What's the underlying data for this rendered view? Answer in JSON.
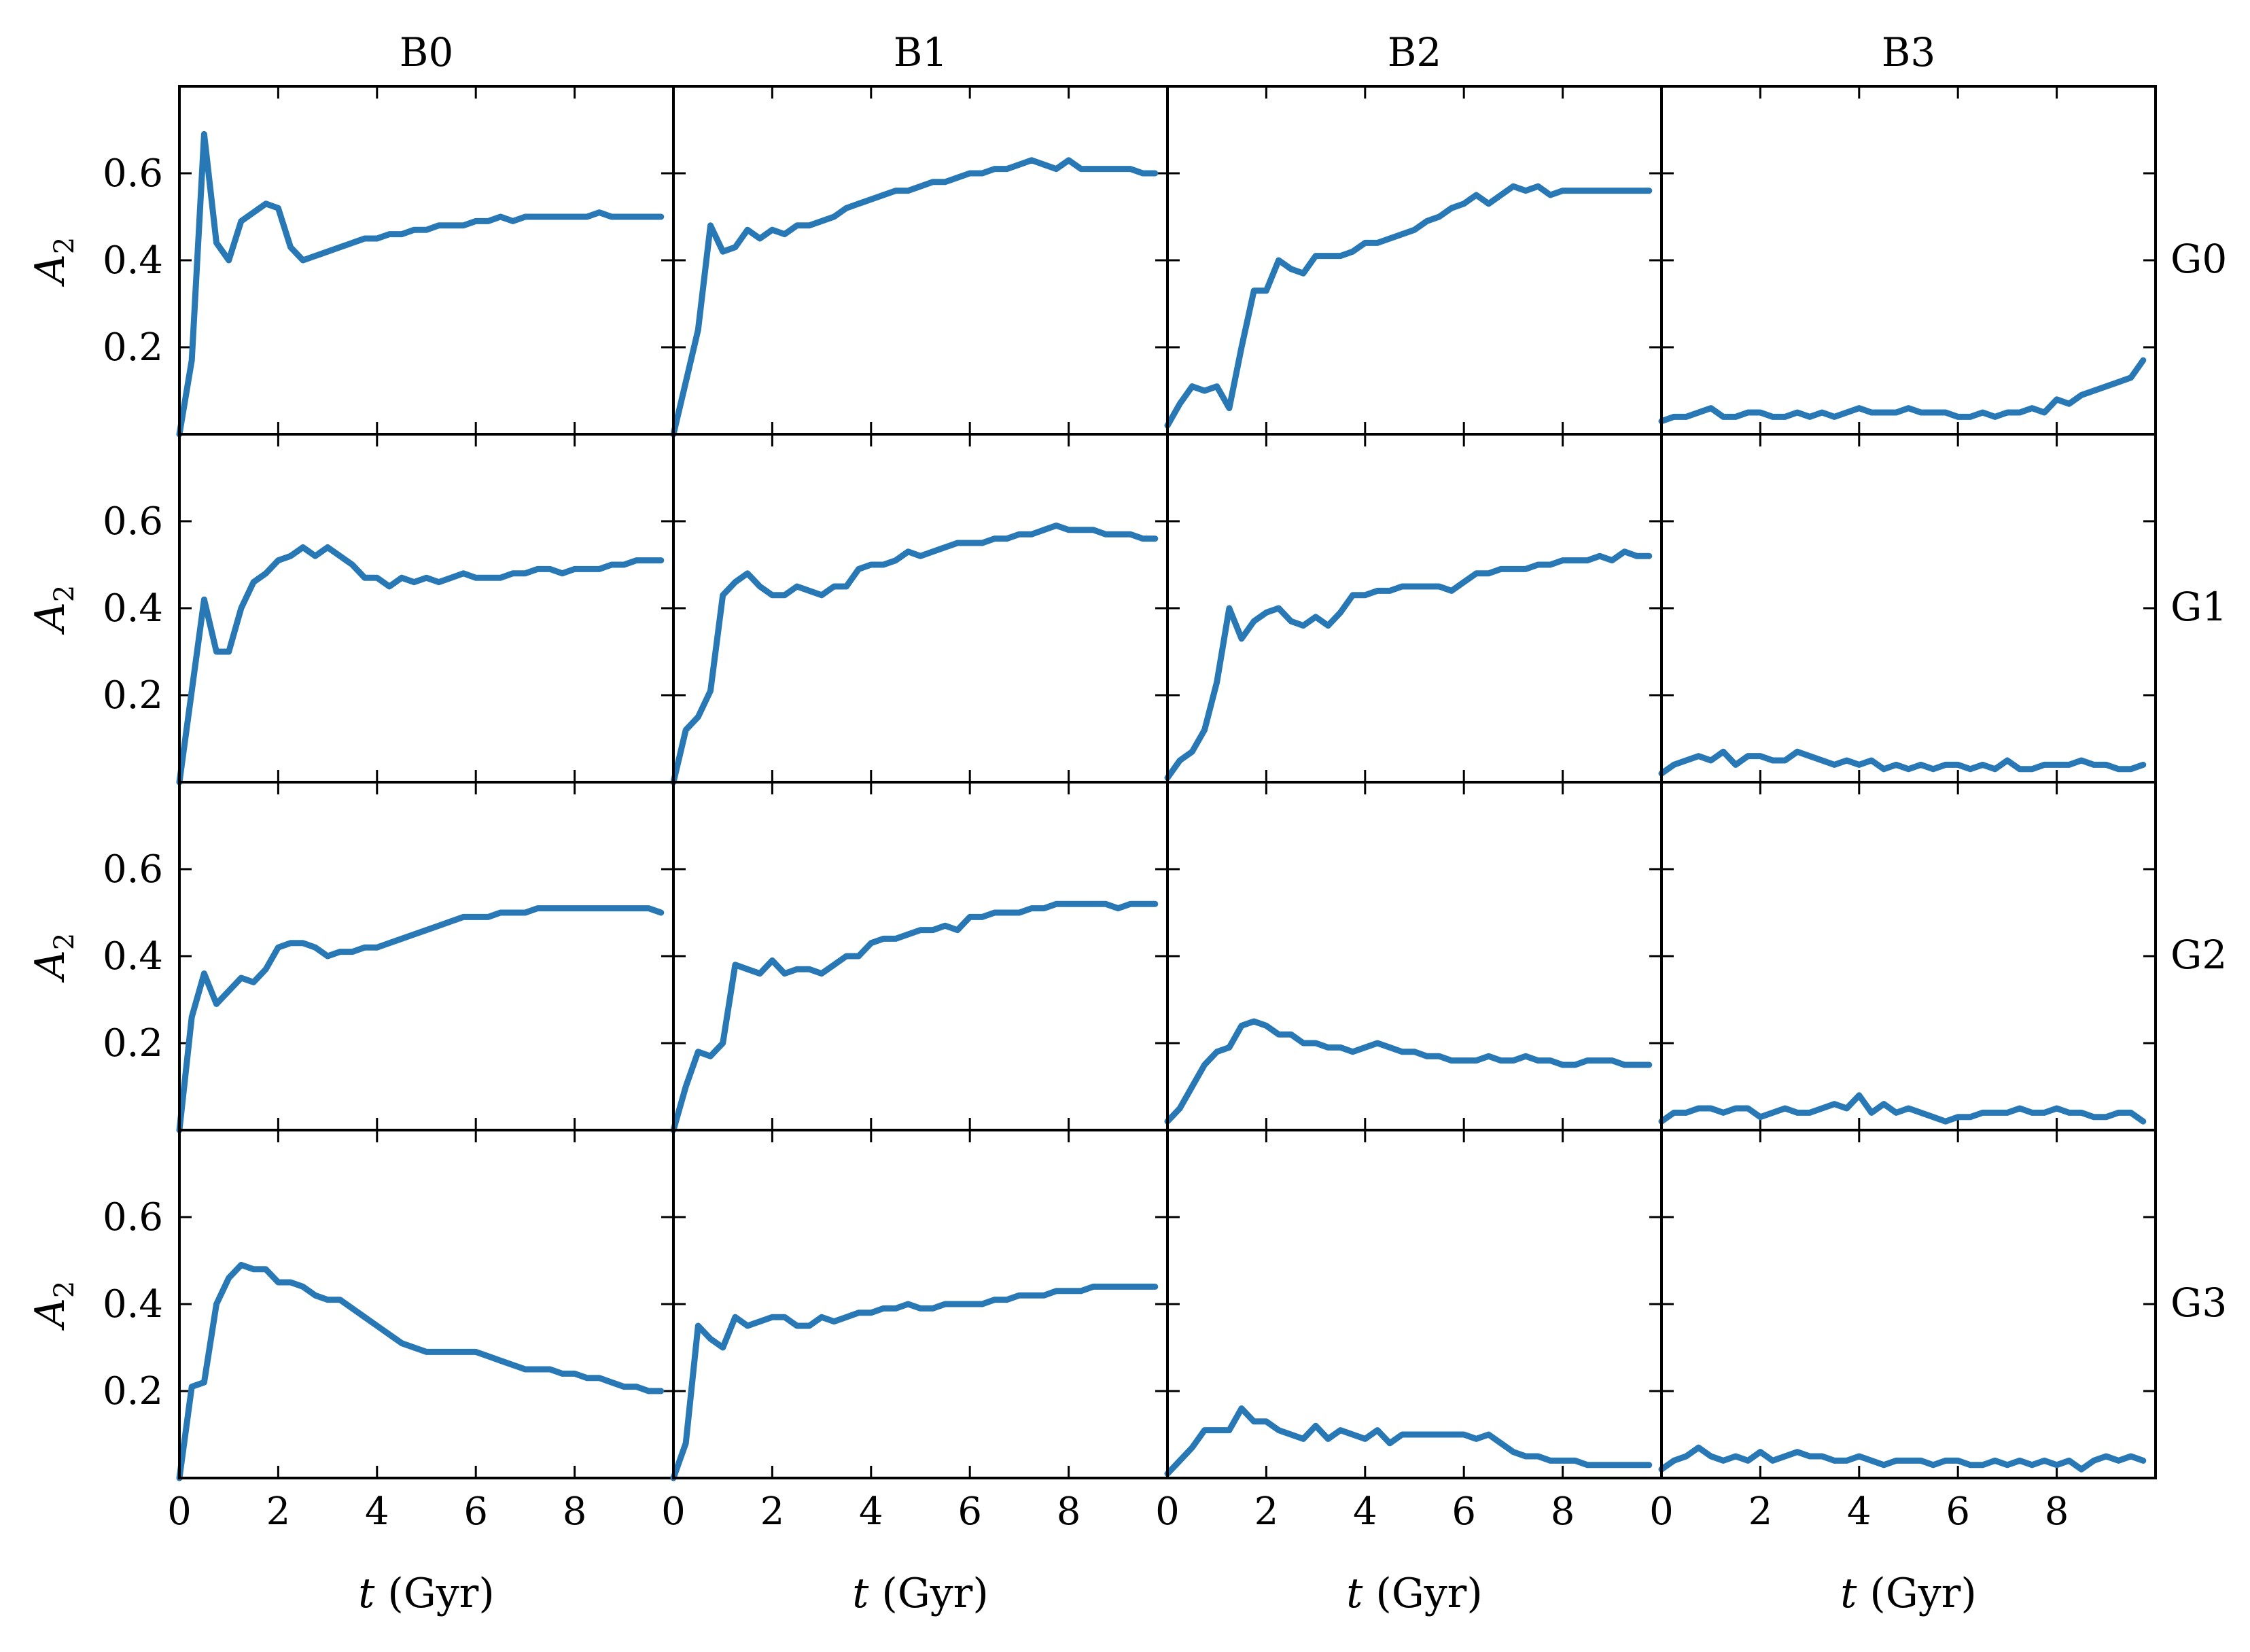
{
  "figure": {
    "columns": [
      "B0",
      "B1",
      "B2",
      "B3"
    ],
    "rows": [
      "G0",
      "G1",
      "G2",
      "G3"
    ],
    "ylabel_symbol": "A",
    "ylabel_subscript": "2",
    "xlabel_symbol": "t",
    "xlabel_unit": " (Gyr)",
    "line_color": "#2878b5",
    "xlim": [
      0,
      10
    ],
    "ylim": [
      0,
      0.8
    ],
    "xticks": [
      0,
      2,
      4,
      6,
      8
    ],
    "yticks": [
      0.2,
      0.4,
      0.6
    ]
  },
  "chart_data": [
    {
      "type": "line",
      "row": "G0",
      "column": "B0",
      "x_step": 0.25,
      "values": [
        0.0,
        0.17,
        0.69,
        0.44,
        0.4,
        0.49,
        0.51,
        0.53,
        0.52,
        0.43,
        0.4,
        0.41,
        0.42,
        0.43,
        0.44,
        0.45,
        0.45,
        0.46,
        0.46,
        0.47,
        0.47,
        0.48,
        0.48,
        0.48,
        0.49,
        0.49,
        0.5,
        0.49,
        0.5,
        0.5,
        0.5,
        0.5,
        0.5,
        0.5,
        0.51,
        0.5,
        0.5,
        0.5,
        0.5,
        0.5
      ]
    },
    {
      "type": "line",
      "row": "G0",
      "column": "B1",
      "x_step": 0.25,
      "values": [
        0.0,
        0.12,
        0.24,
        0.48,
        0.42,
        0.43,
        0.47,
        0.45,
        0.47,
        0.46,
        0.48,
        0.48,
        0.49,
        0.5,
        0.52,
        0.53,
        0.54,
        0.55,
        0.56,
        0.56,
        0.57,
        0.58,
        0.58,
        0.59,
        0.6,
        0.6,
        0.61,
        0.61,
        0.62,
        0.63,
        0.62,
        0.61,
        0.63,
        0.61,
        0.61,
        0.61,
        0.61,
        0.61,
        0.6,
        0.6
      ]
    },
    {
      "type": "line",
      "row": "G0",
      "column": "B2",
      "x_step": 0.25,
      "values": [
        0.02,
        0.07,
        0.11,
        0.1,
        0.11,
        0.06,
        0.2,
        0.33,
        0.33,
        0.4,
        0.38,
        0.37,
        0.41,
        0.41,
        0.41,
        0.42,
        0.44,
        0.44,
        0.45,
        0.46,
        0.47,
        0.49,
        0.5,
        0.52,
        0.53,
        0.55,
        0.53,
        0.55,
        0.57,
        0.56,
        0.57,
        0.55,
        0.56,
        0.56,
        0.56,
        0.56,
        0.56,
        0.56,
        0.56,
        0.56
      ]
    },
    {
      "type": "line",
      "row": "G0",
      "column": "B3",
      "x_step": 0.25,
      "values": [
        0.03,
        0.04,
        0.04,
        0.05,
        0.06,
        0.04,
        0.04,
        0.05,
        0.05,
        0.04,
        0.04,
        0.05,
        0.04,
        0.05,
        0.04,
        0.05,
        0.06,
        0.05,
        0.05,
        0.05,
        0.06,
        0.05,
        0.05,
        0.05,
        0.04,
        0.04,
        0.05,
        0.04,
        0.05,
        0.05,
        0.06,
        0.05,
        0.08,
        0.07,
        0.09,
        0.1,
        0.11,
        0.12,
        0.13,
        0.17
      ]
    },
    {
      "type": "line",
      "row": "G1",
      "column": "B0",
      "x_step": 0.25,
      "values": [
        0.0,
        0.21,
        0.42,
        0.3,
        0.3,
        0.4,
        0.46,
        0.48,
        0.51,
        0.52,
        0.54,
        0.52,
        0.54,
        0.52,
        0.5,
        0.47,
        0.47,
        0.45,
        0.47,
        0.46,
        0.47,
        0.46,
        0.47,
        0.48,
        0.47,
        0.47,
        0.47,
        0.48,
        0.48,
        0.49,
        0.49,
        0.48,
        0.49,
        0.49,
        0.49,
        0.5,
        0.5,
        0.51,
        0.51,
        0.51
      ]
    },
    {
      "type": "line",
      "row": "G1",
      "column": "B1",
      "x_step": 0.25,
      "values": [
        0.0,
        0.12,
        0.15,
        0.21,
        0.43,
        0.46,
        0.48,
        0.45,
        0.43,
        0.43,
        0.45,
        0.44,
        0.43,
        0.45,
        0.45,
        0.49,
        0.5,
        0.5,
        0.51,
        0.53,
        0.52,
        0.53,
        0.54,
        0.55,
        0.55,
        0.55,
        0.56,
        0.56,
        0.57,
        0.57,
        0.58,
        0.59,
        0.58,
        0.58,
        0.58,
        0.57,
        0.57,
        0.57,
        0.56,
        0.56
      ]
    },
    {
      "type": "line",
      "row": "G1",
      "column": "B2",
      "x_step": 0.25,
      "values": [
        0.01,
        0.05,
        0.07,
        0.12,
        0.23,
        0.4,
        0.33,
        0.37,
        0.39,
        0.4,
        0.37,
        0.36,
        0.38,
        0.36,
        0.39,
        0.43,
        0.43,
        0.44,
        0.44,
        0.45,
        0.45,
        0.45,
        0.45,
        0.44,
        0.46,
        0.48,
        0.48,
        0.49,
        0.49,
        0.49,
        0.5,
        0.5,
        0.51,
        0.51,
        0.51,
        0.52,
        0.51,
        0.53,
        0.52,
        0.52
      ]
    },
    {
      "type": "line",
      "row": "G1",
      "column": "B3",
      "x_step": 0.25,
      "values": [
        0.02,
        0.04,
        0.05,
        0.06,
        0.05,
        0.07,
        0.04,
        0.06,
        0.06,
        0.05,
        0.05,
        0.07,
        0.06,
        0.05,
        0.04,
        0.05,
        0.04,
        0.05,
        0.03,
        0.04,
        0.03,
        0.04,
        0.03,
        0.04,
        0.04,
        0.03,
        0.04,
        0.03,
        0.05,
        0.03,
        0.03,
        0.04,
        0.04,
        0.04,
        0.05,
        0.04,
        0.04,
        0.03,
        0.03,
        0.04
      ]
    },
    {
      "type": "line",
      "row": "G2",
      "column": "B0",
      "x_step": 0.25,
      "values": [
        0.0,
        0.26,
        0.36,
        0.29,
        0.32,
        0.35,
        0.34,
        0.37,
        0.42,
        0.43,
        0.43,
        0.42,
        0.4,
        0.41,
        0.41,
        0.42,
        0.42,
        0.43,
        0.44,
        0.45,
        0.46,
        0.47,
        0.48,
        0.49,
        0.49,
        0.49,
        0.5,
        0.5,
        0.5,
        0.51,
        0.51,
        0.51,
        0.51,
        0.51,
        0.51,
        0.51,
        0.51,
        0.51,
        0.51,
        0.5
      ]
    },
    {
      "type": "line",
      "row": "G2",
      "column": "B1",
      "x_step": 0.25,
      "values": [
        0.0,
        0.1,
        0.18,
        0.17,
        0.2,
        0.38,
        0.37,
        0.36,
        0.39,
        0.36,
        0.37,
        0.37,
        0.36,
        0.38,
        0.4,
        0.4,
        0.43,
        0.44,
        0.44,
        0.45,
        0.46,
        0.46,
        0.47,
        0.46,
        0.49,
        0.49,
        0.5,
        0.5,
        0.5,
        0.51,
        0.51,
        0.52,
        0.52,
        0.52,
        0.52,
        0.52,
        0.51,
        0.52,
        0.52,
        0.52
      ]
    },
    {
      "type": "line",
      "row": "G2",
      "column": "B2",
      "x_step": 0.25,
      "values": [
        0.02,
        0.05,
        0.1,
        0.15,
        0.18,
        0.19,
        0.24,
        0.25,
        0.24,
        0.22,
        0.22,
        0.2,
        0.2,
        0.19,
        0.19,
        0.18,
        0.19,
        0.2,
        0.19,
        0.18,
        0.18,
        0.17,
        0.17,
        0.16,
        0.16,
        0.16,
        0.17,
        0.16,
        0.16,
        0.17,
        0.16,
        0.16,
        0.15,
        0.15,
        0.16,
        0.16,
        0.16,
        0.15,
        0.15,
        0.15
      ]
    },
    {
      "type": "line",
      "row": "G2",
      "column": "B3",
      "x_step": 0.25,
      "values": [
        0.02,
        0.04,
        0.04,
        0.05,
        0.05,
        0.04,
        0.05,
        0.05,
        0.03,
        0.04,
        0.05,
        0.04,
        0.04,
        0.05,
        0.06,
        0.05,
        0.08,
        0.04,
        0.06,
        0.04,
        0.05,
        0.04,
        0.03,
        0.02,
        0.03,
        0.03,
        0.04,
        0.04,
        0.04,
        0.05,
        0.04,
        0.04,
        0.05,
        0.04,
        0.04,
        0.03,
        0.03,
        0.04,
        0.04,
        0.02
      ]
    },
    {
      "type": "line",
      "row": "G3",
      "column": "B0",
      "x_step": 0.25,
      "values": [
        0.0,
        0.21,
        0.22,
        0.4,
        0.46,
        0.49,
        0.48,
        0.48,
        0.45,
        0.45,
        0.44,
        0.42,
        0.41,
        0.41,
        0.39,
        0.37,
        0.35,
        0.33,
        0.31,
        0.3,
        0.29,
        0.29,
        0.29,
        0.29,
        0.29,
        0.28,
        0.27,
        0.26,
        0.25,
        0.25,
        0.25,
        0.24,
        0.24,
        0.23,
        0.23,
        0.22,
        0.21,
        0.21,
        0.2,
        0.2
      ]
    },
    {
      "type": "line",
      "row": "G3",
      "column": "B1",
      "x_step": 0.25,
      "values": [
        0.0,
        0.08,
        0.35,
        0.32,
        0.3,
        0.37,
        0.35,
        0.36,
        0.37,
        0.37,
        0.35,
        0.35,
        0.37,
        0.36,
        0.37,
        0.38,
        0.38,
        0.39,
        0.39,
        0.4,
        0.39,
        0.39,
        0.4,
        0.4,
        0.4,
        0.4,
        0.41,
        0.41,
        0.42,
        0.42,
        0.42,
        0.43,
        0.43,
        0.43,
        0.44,
        0.44,
        0.44,
        0.44,
        0.44,
        0.44
      ]
    },
    {
      "type": "line",
      "row": "G3",
      "column": "B2",
      "x_step": 0.25,
      "values": [
        0.01,
        0.04,
        0.07,
        0.11,
        0.11,
        0.11,
        0.16,
        0.13,
        0.13,
        0.11,
        0.1,
        0.09,
        0.12,
        0.09,
        0.11,
        0.1,
        0.09,
        0.11,
        0.08,
        0.1,
        0.1,
        0.1,
        0.1,
        0.1,
        0.1,
        0.09,
        0.1,
        0.08,
        0.06,
        0.05,
        0.05,
        0.04,
        0.04,
        0.04,
        0.03,
        0.03,
        0.03,
        0.03,
        0.03,
        0.03
      ]
    },
    {
      "type": "line",
      "row": "G3",
      "column": "B3",
      "x_step": 0.25,
      "values": [
        0.02,
        0.04,
        0.05,
        0.07,
        0.05,
        0.04,
        0.05,
        0.04,
        0.06,
        0.04,
        0.05,
        0.06,
        0.05,
        0.05,
        0.04,
        0.04,
        0.05,
        0.04,
        0.03,
        0.04,
        0.04,
        0.04,
        0.03,
        0.04,
        0.04,
        0.03,
        0.03,
        0.04,
        0.03,
        0.04,
        0.03,
        0.04,
        0.03,
        0.04,
        0.02,
        0.04,
        0.05,
        0.04,
        0.05,
        0.04
      ]
    }
  ]
}
